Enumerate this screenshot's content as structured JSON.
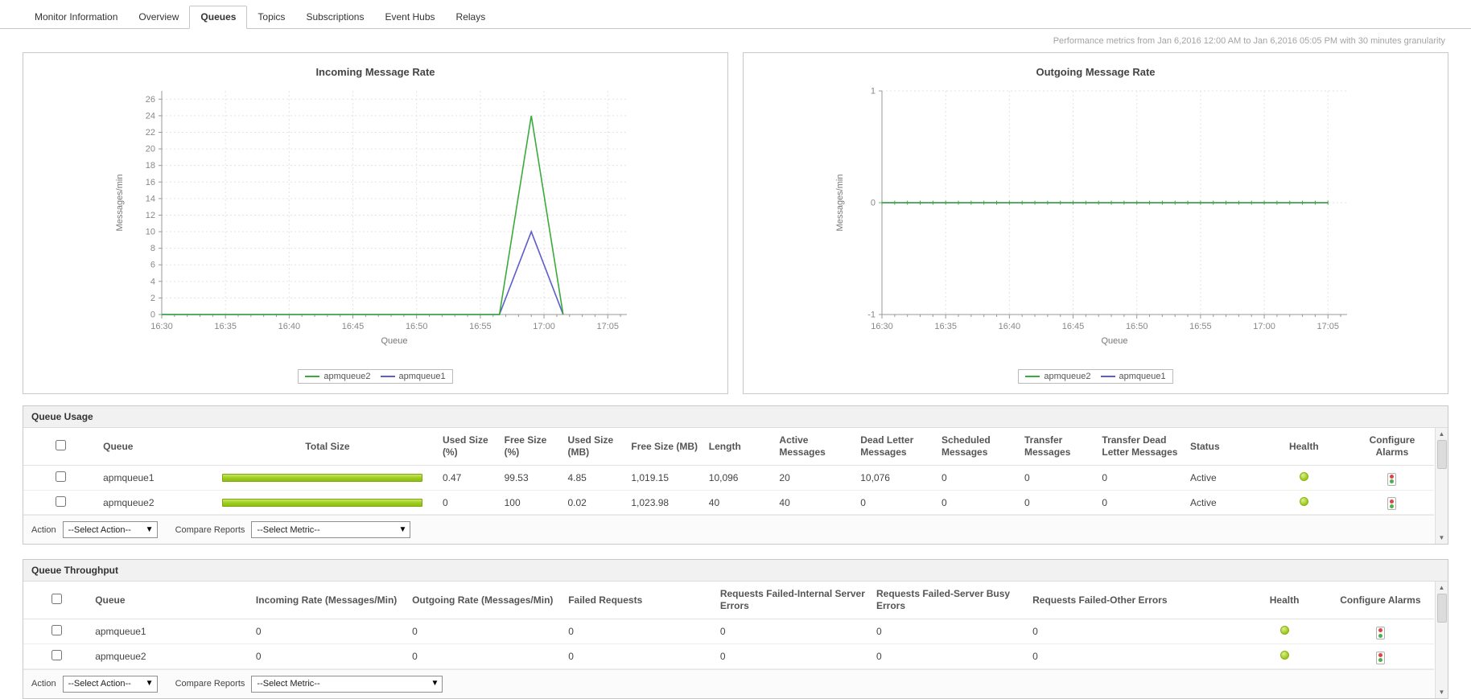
{
  "tabs": {
    "items": [
      {
        "label": "Monitor Information",
        "selected": false
      },
      {
        "label": "Overview",
        "selected": false
      },
      {
        "label": "Queues",
        "selected": true
      },
      {
        "label": "Topics",
        "selected": false
      },
      {
        "label": "Subscriptions",
        "selected": false
      },
      {
        "label": "Event Hubs",
        "selected": false
      },
      {
        "label": "Relays",
        "selected": false
      }
    ]
  },
  "metrics_note": "Performance metrics from Jan 6,2016 12:00 AM to Jan 6,2016 05:05 PM with 30 minutes granularity",
  "chart_data": [
    {
      "type": "line",
      "title": "Incoming Message Rate",
      "xlabel": "Queue",
      "ylabel": "Messages/min",
      "x_ticks": [
        "16:30",
        "16:35",
        "16:40",
        "16:45",
        "16:50",
        "16:55",
        "17:00",
        "17:05"
      ],
      "x_tick_minutes": [
        0,
        5,
        10,
        15,
        20,
        25,
        30,
        35
      ],
      "xlim": [
        0,
        36.5
      ],
      "ylim": [
        0,
        27
      ],
      "y_ticks": [
        0,
        2,
        4,
        6,
        8,
        10,
        12,
        14,
        16,
        18,
        20,
        22,
        24,
        26
      ],
      "grid": true,
      "legend_position": "bottom",
      "series": [
        {
          "name": "apmqueue2",
          "color": "#3aab3a",
          "points": [
            [
              0,
              0
            ],
            [
              5,
              0
            ],
            [
              10,
              0
            ],
            [
              15,
              0
            ],
            [
              20,
              0
            ],
            [
              25,
              0
            ],
            [
              26.5,
              0
            ],
            [
              29,
              24
            ],
            [
              31.5,
              0
            ]
          ]
        },
        {
          "name": "apmqueue1",
          "color": "#5d5dce",
          "points": [
            [
              0,
              0
            ],
            [
              5,
              0
            ],
            [
              10,
              0
            ],
            [
              15,
              0
            ],
            [
              20,
              0
            ],
            [
              25,
              0
            ],
            [
              26.5,
              0
            ],
            [
              29,
              10
            ],
            [
              31.5,
              0
            ]
          ]
        }
      ]
    },
    {
      "type": "line",
      "title": "Outgoing Message Rate",
      "xlabel": "Queue",
      "ylabel": "Messages/min",
      "x_ticks": [
        "16:30",
        "16:35",
        "16:40",
        "16:45",
        "16:50",
        "16:55",
        "17:00",
        "17:05"
      ],
      "x_tick_minutes": [
        0,
        5,
        10,
        15,
        20,
        25,
        30,
        35
      ],
      "xlim": [
        0,
        36.5
      ],
      "ylim": [
        -1,
        1
      ],
      "y_ticks": [
        -1,
        0,
        1
      ],
      "grid": true,
      "legend_position": "bottom",
      "series": [
        {
          "name": "apmqueue2",
          "color": "#3aab3a",
          "tick_markers": true,
          "points": [
            [
              0,
              0
            ],
            [
              35,
              0
            ]
          ]
        },
        {
          "name": "apmqueue1",
          "color": "#5d5dce",
          "points": [
            [
              0,
              0
            ],
            [
              35,
              0
            ]
          ]
        }
      ]
    }
  ],
  "queue_usage": {
    "title": "Queue Usage",
    "columns": [
      "Queue",
      "Total Size",
      "Used Size (%)",
      "Free Size (%)",
      "Used Size (MB)",
      "Free Size (MB)",
      "Length",
      "Active Messages",
      "Dead Letter Messages",
      "Scheduled Messages",
      "Transfer Messages",
      "Transfer Dead Letter Messages",
      "Status",
      "Health",
      "Configure Alarms"
    ],
    "rows": [
      {
        "queue": "apmqueue1",
        "total_size_bar_pct": 95,
        "used_size_pct": "0.47",
        "free_size_pct": "99.53",
        "used_size_mb": "4.85",
        "free_size_mb": "1,019.15",
        "length": "10,096",
        "active_messages": "20",
        "dead_letter_messages": "10,076",
        "scheduled_messages": "0",
        "transfer_messages": "0",
        "transfer_dead_letter_messages": "0",
        "status": "Active",
        "health": "good"
      },
      {
        "queue": "apmqueue2",
        "total_size_bar_pct": 95,
        "used_size_pct": "0",
        "free_size_pct": "100",
        "used_size_mb": "0.02",
        "free_size_mb": "1,023.98",
        "length": "40",
        "active_messages": "40",
        "dead_letter_messages": "0",
        "scheduled_messages": "0",
        "transfer_messages": "0",
        "transfer_dead_letter_messages": "0",
        "status": "Active",
        "health": "good"
      }
    ],
    "footer": {
      "action_label": "Action",
      "action_dropdown": "--Select Action--",
      "compare_label": "Compare Reports",
      "compare_dropdown": "--Select Metric--"
    }
  },
  "queue_throughput": {
    "title": "Queue Throughput",
    "columns": [
      "Queue",
      "Incoming Rate  (Messages/Min)",
      "Outgoing Rate  (Messages/Min)",
      "Failed Requests",
      "Requests Failed-Internal Server Errors",
      "Requests Failed-Server Busy Errors",
      "Requests Failed-Other Errors",
      "Health",
      "Configure Alarms"
    ],
    "rows": [
      {
        "queue": "apmqueue1",
        "incoming_rate": "0",
        "outgoing_rate": "0",
        "failed_requests": "0",
        "requests_failed_internal": "0",
        "requests_failed_busy": "0",
        "requests_failed_other": "0",
        "health": "good"
      },
      {
        "queue": "apmqueue2",
        "incoming_rate": "0",
        "outgoing_rate": "0",
        "failed_requests": "0",
        "requests_failed_internal": "0",
        "requests_failed_busy": "0",
        "requests_failed_other": "0",
        "health": "good"
      }
    ],
    "footer": {
      "action_label": "Action",
      "action_dropdown": "--Select Action--",
      "compare_label": "Compare Reports",
      "compare_dropdown": "--Select Metric--"
    }
  }
}
